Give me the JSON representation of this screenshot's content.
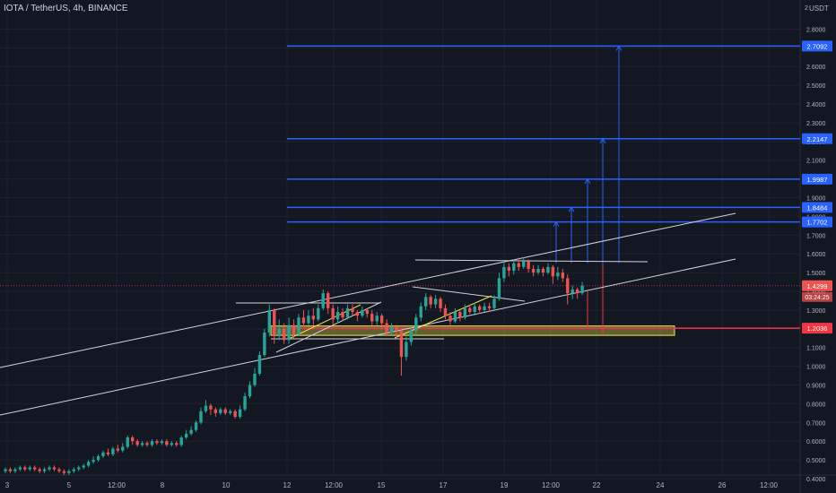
{
  "header": {
    "symbol_title": "IOTA / TetherUS, 4h, BINANCE",
    "currency_label": "USDT",
    "currency_prefix": "2"
  },
  "colors": {
    "background": "#131722",
    "grid": "#1e222d",
    "up": "#26a69a",
    "down": "#ef5350",
    "target_line": "#2962ff",
    "support_line": "#f23645",
    "trendline": "#d1d4dc",
    "zone_fill": "#f7e84a",
    "axis_text": "#b2b5be"
  },
  "chart_data": {
    "type": "candlestick",
    "ylim": [
      0.4,
      2.85
    ],
    "price_axis_ticks": [
      "2.8000",
      "2.7000",
      "2.6000",
      "2.5000",
      "2.4000",
      "2.3000",
      "2.2000",
      "2.1000",
      "2.0000",
      "1.9000",
      "1.8000",
      "1.7000",
      "1.6000",
      "1.5000",
      "1.4000",
      "1.3000",
      "1.2000",
      "1.1000",
      "1.0000",
      "0.9000",
      "0.8000",
      "0.7000",
      "0.6000",
      "0.5000",
      "0.4000"
    ],
    "time_axis_ticks": [
      "3",
      "5",
      "12:00",
      "8",
      "10",
      "12",
      "12:00",
      "15",
      "17",
      "19",
      "12:00",
      "22",
      "24",
      "26",
      "12:00"
    ],
    "target_levels": [
      {
        "label": "2.7092",
        "value": 2.7092
      },
      {
        "label": "2.2147",
        "value": 2.2147
      },
      {
        "label": "1.9987",
        "value": 1.9987
      },
      {
        "label": "1.8484",
        "value": 1.8484
      },
      {
        "label": "1.7702",
        "value": 1.7702
      }
    ],
    "support_level": {
      "label": "1.2036",
      "value": 1.2036
    },
    "last_price": {
      "label": "1.4299",
      "value": 1.4299,
      "countdown": "03:24:25"
    },
    "candles": [
      [
        0.44,
        0.45,
        0.46,
        0.43
      ],
      [
        0.45,
        0.44,
        0.46,
        0.43
      ],
      [
        0.44,
        0.45,
        0.46,
        0.43
      ],
      [
        0.45,
        0.46,
        0.47,
        0.44
      ],
      [
        0.46,
        0.45,
        0.47,
        0.44
      ],
      [
        0.45,
        0.46,
        0.47,
        0.44
      ],
      [
        0.46,
        0.45,
        0.47,
        0.44
      ],
      [
        0.45,
        0.44,
        0.46,
        0.43
      ],
      [
        0.44,
        0.45,
        0.46,
        0.43
      ],
      [
        0.45,
        0.46,
        0.47,
        0.44
      ],
      [
        0.46,
        0.45,
        0.47,
        0.44
      ],
      [
        0.45,
        0.44,
        0.46,
        0.43
      ],
      [
        0.44,
        0.43,
        0.45,
        0.42
      ],
      [
        0.43,
        0.44,
        0.45,
        0.42
      ],
      [
        0.44,
        0.45,
        0.46,
        0.43
      ],
      [
        0.45,
        0.46,
        0.47,
        0.44
      ],
      [
        0.46,
        0.47,
        0.48,
        0.45
      ],
      [
        0.47,
        0.49,
        0.5,
        0.46
      ],
      [
        0.49,
        0.5,
        0.52,
        0.48
      ],
      [
        0.5,
        0.52,
        0.53,
        0.49
      ],
      [
        0.52,
        0.54,
        0.55,
        0.51
      ],
      [
        0.54,
        0.53,
        0.56,
        0.52
      ],
      [
        0.53,
        0.56,
        0.57,
        0.52
      ],
      [
        0.56,
        0.55,
        0.58,
        0.54
      ],
      [
        0.55,
        0.57,
        0.59,
        0.54
      ],
      [
        0.57,
        0.62,
        0.63,
        0.56
      ],
      [
        0.62,
        0.6,
        0.63,
        0.58
      ],
      [
        0.6,
        0.58,
        0.61,
        0.57
      ],
      [
        0.58,
        0.59,
        0.6,
        0.57
      ],
      [
        0.59,
        0.58,
        0.6,
        0.57
      ],
      [
        0.58,
        0.6,
        0.61,
        0.57
      ],
      [
        0.6,
        0.59,
        0.61,
        0.58
      ],
      [
        0.59,
        0.6,
        0.61,
        0.58
      ],
      [
        0.6,
        0.58,
        0.61,
        0.57
      ],
      [
        0.58,
        0.59,
        0.6,
        0.57
      ],
      [
        0.59,
        0.58,
        0.6,
        0.57
      ],
      [
        0.58,
        0.62,
        0.63,
        0.57
      ],
      [
        0.62,
        0.64,
        0.66,
        0.61
      ],
      [
        0.64,
        0.66,
        0.68,
        0.63
      ],
      [
        0.66,
        0.7,
        0.71,
        0.65
      ],
      [
        0.7,
        0.76,
        0.78,
        0.69
      ],
      [
        0.76,
        0.79,
        0.82,
        0.75
      ],
      [
        0.79,
        0.77,
        0.8,
        0.74
      ],
      [
        0.77,
        0.75,
        0.78,
        0.73
      ],
      [
        0.75,
        0.77,
        0.78,
        0.74
      ],
      [
        0.77,
        0.75,
        0.78,
        0.74
      ],
      [
        0.75,
        0.76,
        0.77,
        0.74
      ],
      [
        0.76,
        0.73,
        0.77,
        0.72
      ],
      [
        0.73,
        0.77,
        0.79,
        0.72
      ],
      [
        0.77,
        0.84,
        0.86,
        0.76
      ],
      [
        0.84,
        0.9,
        0.92,
        0.83
      ],
      [
        0.9,
        0.96,
        0.99,
        0.89
      ],
      [
        0.96,
        1.06,
        1.08,
        0.95
      ],
      [
        1.06,
        1.18,
        1.2,
        1.05
      ],
      [
        1.18,
        1.3,
        1.33,
        1.16
      ],
      [
        1.3,
        1.16,
        1.31,
        1.12
      ],
      [
        1.16,
        1.2,
        1.25,
        1.14
      ],
      [
        1.2,
        1.14,
        1.23,
        1.12
      ],
      [
        1.14,
        1.22,
        1.26,
        1.12
      ],
      [
        1.22,
        1.17,
        1.25,
        1.15
      ],
      [
        1.17,
        1.26,
        1.28,
        1.16
      ],
      [
        1.26,
        1.23,
        1.3,
        1.21
      ],
      [
        1.23,
        1.27,
        1.3,
        1.22
      ],
      [
        1.27,
        1.25,
        1.31,
        1.22
      ],
      [
        1.25,
        1.31,
        1.33,
        1.24
      ],
      [
        1.31,
        1.39,
        1.41,
        1.3
      ],
      [
        1.39,
        1.31,
        1.4,
        1.28
      ],
      [
        1.31,
        1.25,
        1.33,
        1.22
      ],
      [
        1.25,
        1.29,
        1.32,
        1.23
      ],
      [
        1.29,
        1.26,
        1.31,
        1.24
      ],
      [
        1.26,
        1.31,
        1.33,
        1.25
      ],
      [
        1.31,
        1.29,
        1.33,
        1.27
      ],
      [
        1.29,
        1.27,
        1.3,
        1.24
      ],
      [
        1.27,
        1.3,
        1.32,
        1.26
      ],
      [
        1.3,
        1.28,
        1.31,
        1.26
      ],
      [
        1.28,
        1.24,
        1.3,
        1.22
      ],
      [
        1.24,
        1.27,
        1.29,
        1.22
      ],
      [
        1.27,
        1.23,
        1.28,
        1.2
      ],
      [
        1.23,
        1.18,
        1.25,
        1.16
      ],
      [
        1.18,
        1.21,
        1.23,
        1.17
      ],
      [
        1.21,
        1.19,
        1.22,
        1.15
      ],
      [
        1.19,
        1.05,
        1.2,
        0.95
      ],
      [
        1.05,
        1.13,
        1.16,
        1.03
      ],
      [
        1.13,
        1.19,
        1.21,
        1.11
      ],
      [
        1.19,
        1.26,
        1.28,
        1.17
      ],
      [
        1.26,
        1.32,
        1.34,
        1.24
      ],
      [
        1.32,
        1.37,
        1.39,
        1.3
      ],
      [
        1.37,
        1.33,
        1.38,
        1.31
      ],
      [
        1.33,
        1.36,
        1.38,
        1.31
      ],
      [
        1.36,
        1.31,
        1.37,
        1.29
      ],
      [
        1.31,
        1.27,
        1.33,
        1.25
      ],
      [
        1.27,
        1.24,
        1.29,
        1.22
      ],
      [
        1.24,
        1.29,
        1.31,
        1.23
      ],
      [
        1.29,
        1.26,
        1.3,
        1.24
      ],
      [
        1.26,
        1.31,
        1.33,
        1.25
      ],
      [
        1.31,
        1.29,
        1.33,
        1.28
      ],
      [
        1.29,
        1.32,
        1.34,
        1.27
      ],
      [
        1.32,
        1.3,
        1.33,
        1.28
      ],
      [
        1.3,
        1.32,
        1.34,
        1.29
      ],
      [
        1.32,
        1.31,
        1.34,
        1.29
      ],
      [
        1.31,
        1.36,
        1.38,
        1.3
      ],
      [
        1.36,
        1.47,
        1.5,
        1.35
      ],
      [
        1.47,
        1.53,
        1.56,
        1.45
      ],
      [
        1.53,
        1.51,
        1.55,
        1.48
      ],
      [
        1.51,
        1.55,
        1.57,
        1.49
      ],
      [
        1.55,
        1.53,
        1.58,
        1.51
      ],
      [
        1.53,
        1.56,
        1.58,
        1.52
      ],
      [
        1.56,
        1.52,
        1.57,
        1.5
      ],
      [
        1.52,
        1.5,
        1.54,
        1.48
      ],
      [
        1.5,
        1.52,
        1.54,
        1.49
      ],
      [
        1.52,
        1.5,
        1.53,
        1.48
      ],
      [
        1.5,
        1.53,
        1.55,
        1.49
      ],
      [
        1.53,
        1.48,
        1.54,
        1.44
      ],
      [
        1.48,
        1.5,
        1.53,
        1.46
      ],
      [
        1.5,
        1.47,
        1.52,
        1.45
      ],
      [
        1.47,
        1.39,
        1.49,
        1.33
      ],
      [
        1.39,
        1.41,
        1.43,
        1.36
      ],
      [
        1.41,
        1.39,
        1.42,
        1.36
      ],
      [
        1.39,
        1.43,
        1.45,
        1.38
      ]
    ]
  }
}
